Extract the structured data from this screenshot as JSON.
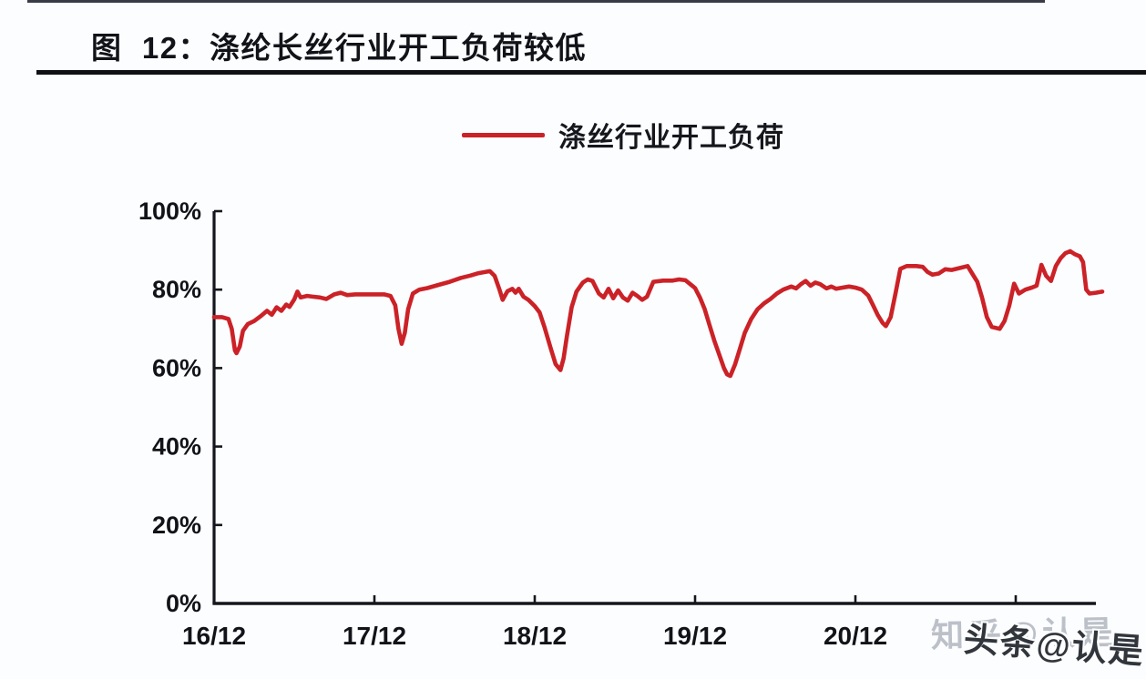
{
  "header": {
    "title": "图  12：涤纶长丝行业开工负荷较低"
  },
  "legend": {
    "label": "涤丝行业开工负荷"
  },
  "watermarks": {
    "back": "知乎@认是",
    "front": "头条@认是"
  },
  "colors": {
    "line": "#cb2227",
    "axis": "#15161d",
    "text": "#121318",
    "background": "#fcfdff",
    "watermark_back": "#bcc0c8",
    "watermark_front": "#31353c"
  },
  "chart_data": {
    "type": "line",
    "title": "图 12：涤纶长丝行业开工负荷较低",
    "xlabel": "",
    "ylabel": "",
    "x_unit": "years since Dec-2016 (tick format YY/12)",
    "xlim": [
      0,
      5.5
    ],
    "ylim": [
      0,
      100
    ],
    "grid": false,
    "legend_position": "top-center",
    "yticks": [
      {
        "value": 0,
        "label": "0%"
      },
      {
        "value": 20,
        "label": "20%"
      },
      {
        "value": 40,
        "label": "40%"
      },
      {
        "value": 60,
        "label": "60%"
      },
      {
        "value": 80,
        "label": "80%"
      },
      {
        "value": 100,
        "label": "100%"
      }
    ],
    "xticks": [
      {
        "value": 0,
        "label": "16/12"
      },
      {
        "value": 1,
        "label": "17/12"
      },
      {
        "value": 2,
        "label": "18/12"
      },
      {
        "value": 3,
        "label": "19/12"
      },
      {
        "value": 4,
        "label": "20/12"
      },
      {
        "value": 5,
        "label": ""
      }
    ],
    "series": [
      {
        "name": "涤丝行业开工负荷",
        "unit": "%",
        "points": [
          [
            0.0,
            73.0
          ],
          [
            0.05,
            73.0
          ],
          [
            0.09,
            72.5
          ],
          [
            0.11,
            70.0
          ],
          [
            0.13,
            64.5
          ],
          [
            0.14,
            63.8
          ],
          [
            0.16,
            65.5
          ],
          [
            0.18,
            69.5
          ],
          [
            0.21,
            71.2
          ],
          [
            0.25,
            72.0
          ],
          [
            0.29,
            73.2
          ],
          [
            0.33,
            74.6
          ],
          [
            0.36,
            73.6
          ],
          [
            0.39,
            75.5
          ],
          [
            0.42,
            74.6
          ],
          [
            0.45,
            76.2
          ],
          [
            0.47,
            75.6
          ],
          [
            0.5,
            77.5
          ],
          [
            0.52,
            79.5
          ],
          [
            0.54,
            78.0
          ],
          [
            0.58,
            78.4
          ],
          [
            0.62,
            78.2
          ],
          [
            0.66,
            78.0
          ],
          [
            0.7,
            77.6
          ],
          [
            0.75,
            78.8
          ],
          [
            0.79,
            79.2
          ],
          [
            0.83,
            78.6
          ],
          [
            0.88,
            78.8
          ],
          [
            0.94,
            78.8
          ],
          [
            1.0,
            78.8
          ],
          [
            1.06,
            78.8
          ],
          [
            1.1,
            78.4
          ],
          [
            1.13,
            76.0
          ],
          [
            1.15,
            70.0
          ],
          [
            1.17,
            66.2
          ],
          [
            1.19,
            69.0
          ],
          [
            1.21,
            75.0
          ],
          [
            1.24,
            79.0
          ],
          [
            1.28,
            80.0
          ],
          [
            1.33,
            80.4
          ],
          [
            1.4,
            81.2
          ],
          [
            1.47,
            82.0
          ],
          [
            1.54,
            83.0
          ],
          [
            1.6,
            83.6
          ],
          [
            1.65,
            84.2
          ],
          [
            1.72,
            84.7
          ],
          [
            1.75,
            83.5
          ],
          [
            1.78,
            80.0
          ],
          [
            1.8,
            77.4
          ],
          [
            1.83,
            79.6
          ],
          [
            1.86,
            80.2
          ],
          [
            1.88,
            79.2
          ],
          [
            1.9,
            80.2
          ],
          [
            1.93,
            78.2
          ],
          [
            1.96,
            77.4
          ],
          [
            2.0,
            75.8
          ],
          [
            2.03,
            74.2
          ],
          [
            2.06,
            70.5
          ],
          [
            2.1,
            65.0
          ],
          [
            2.13,
            61.0
          ],
          [
            2.16,
            59.5
          ],
          [
            2.18,
            62.5
          ],
          [
            2.2,
            68.0
          ],
          [
            2.23,
            75.5
          ],
          [
            2.26,
            79.5
          ],
          [
            2.3,
            81.8
          ],
          [
            2.33,
            82.6
          ],
          [
            2.36,
            82.2
          ],
          [
            2.4,
            79.0
          ],
          [
            2.43,
            78.0
          ],
          [
            2.46,
            80.2
          ],
          [
            2.49,
            77.8
          ],
          [
            2.52,
            79.8
          ],
          [
            2.55,
            78.0
          ],
          [
            2.58,
            77.2
          ],
          [
            2.61,
            79.2
          ],
          [
            2.64,
            78.4
          ],
          [
            2.67,
            77.4
          ],
          [
            2.7,
            78.2
          ],
          [
            2.74,
            82.0
          ],
          [
            2.8,
            82.3
          ],
          [
            2.86,
            82.3
          ],
          [
            2.9,
            82.6
          ],
          [
            2.94,
            82.4
          ],
          [
            2.97,
            81.4
          ],
          [
            3.0,
            80.4
          ],
          [
            3.03,
            78.0
          ],
          [
            3.06,
            75.0
          ],
          [
            3.09,
            71.0
          ],
          [
            3.12,
            67.0
          ],
          [
            3.15,
            63.5
          ],
          [
            3.18,
            60.0
          ],
          [
            3.2,
            58.4
          ],
          [
            3.22,
            58.0
          ],
          [
            3.25,
            61.0
          ],
          [
            3.28,
            65.0
          ],
          [
            3.31,
            69.0
          ],
          [
            3.35,
            72.5
          ],
          [
            3.39,
            75.0
          ],
          [
            3.43,
            76.5
          ],
          [
            3.47,
            77.6
          ],
          [
            3.51,
            79.0
          ],
          [
            3.55,
            80.0
          ],
          [
            3.6,
            80.8
          ],
          [
            3.63,
            80.3
          ],
          [
            3.66,
            81.4
          ],
          [
            3.69,
            82.2
          ],
          [
            3.72,
            81.0
          ],
          [
            3.75,
            81.8
          ],
          [
            3.78,
            81.4
          ],
          [
            3.82,
            80.3
          ],
          [
            3.85,
            80.8
          ],
          [
            3.88,
            80.2
          ],
          [
            3.92,
            80.5
          ],
          [
            3.96,
            80.8
          ],
          [
            4.0,
            80.5
          ],
          [
            4.04,
            80.0
          ],
          [
            4.08,
            78.5
          ],
          [
            4.11,
            76.0
          ],
          [
            4.14,
            73.5
          ],
          [
            4.17,
            71.5
          ],
          [
            4.19,
            70.7
          ],
          [
            4.22,
            73.0
          ],
          [
            4.25,
            79.0
          ],
          [
            4.28,
            85.3
          ],
          [
            4.32,
            86.0
          ],
          [
            4.38,
            86.0
          ],
          [
            4.42,
            85.8
          ],
          [
            4.45,
            84.5
          ],
          [
            4.48,
            83.8
          ],
          [
            4.52,
            84.1
          ],
          [
            4.56,
            85.2
          ],
          [
            4.6,
            85.0
          ],
          [
            4.65,
            85.5
          ],
          [
            4.7,
            86.0
          ],
          [
            4.73,
            84.0
          ],
          [
            4.76,
            82.0
          ],
          [
            4.79,
            78.0
          ],
          [
            4.82,
            73.0
          ],
          [
            4.85,
            70.5
          ],
          [
            4.9,
            70.0
          ],
          [
            4.93,
            72.0
          ],
          [
            4.96,
            76.0
          ],
          [
            4.99,
            81.5
          ],
          [
            5.02,
            79.0
          ],
          [
            5.06,
            80.0
          ],
          [
            5.1,
            80.5
          ],
          [
            5.13,
            81.0
          ],
          [
            5.16,
            86.3
          ],
          [
            5.19,
            83.5
          ],
          [
            5.22,
            82.2
          ],
          [
            5.25,
            86.0
          ],
          [
            5.28,
            88.0
          ],
          [
            5.31,
            89.3
          ],
          [
            5.34,
            89.8
          ],
          [
            5.37,
            89.0
          ],
          [
            5.4,
            88.5
          ],
          [
            5.42,
            87.0
          ],
          [
            5.44,
            80.0
          ],
          [
            5.46,
            79.0
          ],
          [
            5.5,
            79.2
          ],
          [
            5.54,
            79.5
          ]
        ]
      }
    ]
  }
}
